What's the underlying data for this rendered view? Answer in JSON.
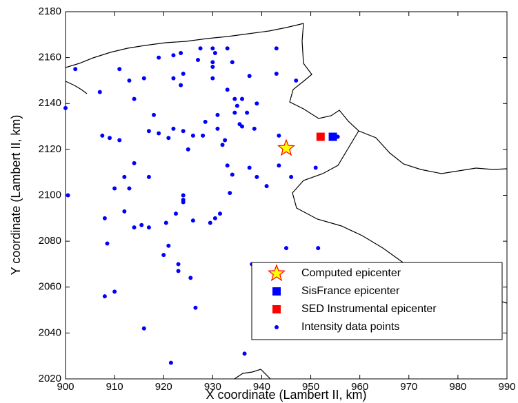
{
  "chart_data": {
    "type": "scatter",
    "xlabel": "X coordinate (Lambert II, km)",
    "ylabel": "Y coordinate (Lambert II, km)",
    "xlim": [
      900,
      990
    ],
    "xticks": [
      900,
      910,
      920,
      930,
      940,
      950,
      960,
      970,
      980,
      990
    ],
    "ylim": [
      2020,
      2180
    ],
    "yticks": [
      2020,
      2040,
      2060,
      2080,
      2100,
      2120,
      2140,
      2160,
      2180
    ],
    "legend": "lower right",
    "series": [
      {
        "name": "Computed epicenter",
        "marker": "star",
        "color": "#ffff00",
        "edgecolor": "#ff0000",
        "x": [
          945
        ],
        "y": [
          2120.5
        ]
      },
      {
        "name": "SisFrance epicenter",
        "marker": "square",
        "color": "#0000ff",
        "x": [
          954.5
        ],
        "y": [
          2125.5
        ]
      },
      {
        "name": "SED Instrumental epicenter",
        "marker": "square",
        "color": "#ff0000",
        "x": [
          952
        ],
        "y": [
          2125.5
        ]
      },
      {
        "name": "Intensity data points",
        "marker": "dot",
        "color": "#0000ff",
        "x": [
          900,
          900.5,
          902,
          907,
          907.5,
          908,
          908,
          908.5,
          909,
          910,
          910,
          911,
          911,
          912,
          912,
          913,
          913,
          914,
          914,
          914,
          915.5,
          916,
          916,
          917,
          917,
          917,
          918,
          919,
          919,
          920,
          920.5,
          921,
          921,
          921.5,
          922,
          922,
          922,
          922.5,
          923,
          923,
          923.5,
          923.5,
          924,
          924,
          924,
          924,
          924,
          925,
          925.5,
          926,
          926,
          926.5,
          927,
          927.5,
          928,
          928.5,
          929.5,
          930,
          930,
          930,
          930,
          930.5,
          930.5,
          931,
          931,
          931.5,
          932,
          932.5,
          933,
          933,
          933,
          933.5,
          934,
          934,
          934.5,
          934.5,
          935,
          935.5,
          936,
          936,
          936.5,
          937,
          937.5,
          937.5,
          938,
          938.5,
          939,
          939,
          941,
          943,
          943,
          943.5,
          943.5,
          945,
          946,
          947,
          951,
          951.5,
          955.5
        ],
        "y": [
          2138,
          2100,
          2155,
          2145,
          2126,
          2090,
          2056,
          2079,
          2125,
          2058,
          2103,
          2155,
          2124,
          2093,
          2108,
          2150,
          2103,
          2142,
          2086,
          2114,
          2087,
          2151,
          2042,
          2128,
          2108,
          2086,
          2135,
          2160,
          2127,
          2074,
          2088,
          2078,
          2125,
          2027,
          2161,
          2129,
          2151,
          2092,
          2070,
          2067,
          2148,
          2162,
          2098,
          2153,
          2128,
          2097,
          2100,
          2120,
          2064,
          2126,
          2089,
          2051,
          2159,
          2164,
          2126,
          2132,
          2088,
          2164,
          2151,
          2158,
          2156,
          2162,
          2090,
          2135,
          2129,
          2092,
          2122,
          2124,
          2164,
          2146,
          2113,
          2101,
          2158,
          2109,
          2136,
          2142,
          2139,
          2131,
          2130,
          2142,
          2031,
          2136,
          2152,
          2112,
          2070,
          2129,
          2108,
          2140,
          2104,
          2153,
          2164,
          2126,
          2113,
          2077,
          2108,
          2150,
          2112,
          2077,
          2125.5
        ]
      }
    ]
  }
}
